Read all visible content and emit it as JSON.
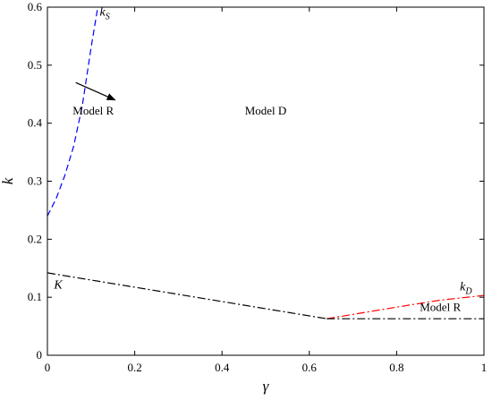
{
  "chart_data": {
    "type": "line",
    "title": "",
    "xlabel": "γ",
    "ylabel": "k",
    "xlim": [
      0,
      1
    ],
    "ylim": [
      0,
      0.6
    ],
    "xticks": [
      "0",
      "0.2",
      "0.4",
      "0.6",
      "0.8",
      "1"
    ],
    "yticks": [
      "0",
      "0.1",
      "0.2",
      "0.3",
      "0.4",
      "0.5",
      "0.6"
    ],
    "xtick_values": [
      0,
      0.2,
      0.4,
      0.6,
      0.8,
      1
    ],
    "ytick_values": [
      0,
      0.1,
      0.2,
      0.3,
      0.4,
      0.5,
      0.6
    ],
    "grid": false,
    "legend": "none",
    "series": [
      {
        "id": "kS",
        "color": "#0000ff",
        "dash": "dashed",
        "x": [
          0,
          0.02,
          0.04,
          0.06,
          0.08,
          0.1,
          0.115
        ],
        "y": [
          0.24,
          0.27,
          0.31,
          0.36,
          0.43,
          0.53,
          0.598
        ]
      },
      {
        "id": "K",
        "color": "#000000",
        "dash": "dash-dot",
        "x": [
          0,
          0.64
        ],
        "y": [
          0.142,
          0.063
        ]
      },
      {
        "id": "kD",
        "color": "#ff0000",
        "dash": "dash-dot",
        "x": [
          0.64,
          0.8,
          0.9,
          1
        ],
        "y": [
          0.063,
          0.083,
          0.095,
          0.103
        ]
      },
      {
        "id": "boundary-R",
        "color": "#000000",
        "dash": "dash-dot",
        "x": [
          0.64,
          1
        ],
        "y": [
          0.063,
          0.063
        ]
      }
    ],
    "annotations": [
      {
        "key": "kS",
        "text_main": "k",
        "text_sub": "S",
        "x": 0.12,
        "y": 0.585
      },
      {
        "key": "K",
        "text_main": "K",
        "x": 0.015,
        "y": 0.115
      },
      {
        "key": "kD",
        "text_main": "k",
        "text_sub": "D",
        "x": 0.945,
        "y": 0.112
      },
      {
        "key": "modelR1",
        "text": "Model R",
        "x": 0.105,
        "y": 0.415
      },
      {
        "key": "modelD",
        "text": "Model D",
        "x": 0.5,
        "y": 0.415
      },
      {
        "key": "modelR2",
        "text": "Model R",
        "x": 0.9,
        "y": 0.076
      }
    ],
    "arrow": {
      "from": [
        0.065,
        0.47
      ],
      "to": [
        0.155,
        0.44
      ],
      "color": "#000000"
    }
  }
}
